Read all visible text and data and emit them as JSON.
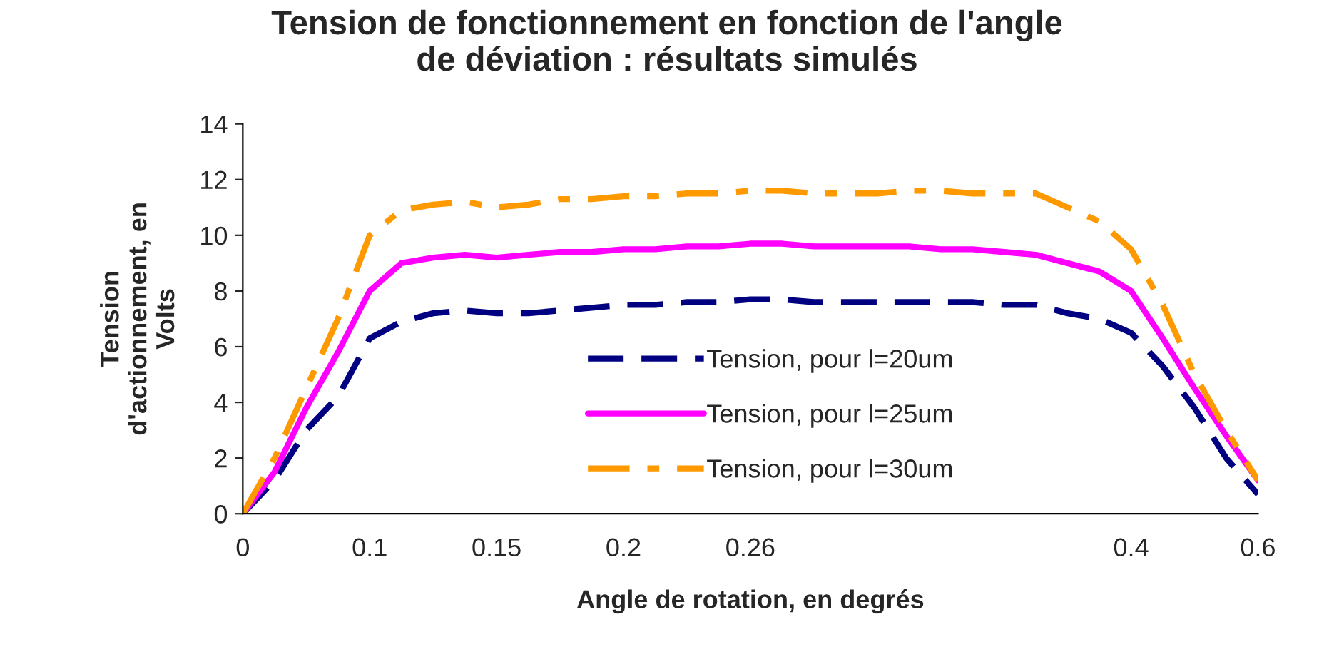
{
  "chart_data": {
    "type": "line",
    "title": "Tension de fonctionnement en fonction de l'angle\nde déviation : résultats simulés",
    "xlabel": "Angle de rotation, en degrés",
    "ylabel": "Tension\nd'actionnement, en\nVolts",
    "categories": [
      "0",
      null,
      null,
      null,
      "0.1",
      null,
      null,
      null,
      "0.15",
      null,
      null,
      null,
      "0.2",
      null,
      null,
      null,
      "0.26",
      null,
      null,
      null,
      null,
      null,
      null,
      null,
      null,
      null,
      null,
      null,
      "0.4",
      null,
      null,
      null,
      "0.6"
    ],
    "series": [
      {
        "name": "Tension, pour l=20um",
        "color": "#000080",
        "line_style": "dashed",
        "values": [
          0,
          1.2,
          3.0,
          4.2,
          6.3,
          6.9,
          7.2,
          7.3,
          7.2,
          7.2,
          7.3,
          7.4,
          7.5,
          7.5,
          7.6,
          7.6,
          7.7,
          7.7,
          7.6,
          7.6,
          7.6,
          7.6,
          7.6,
          7.6,
          7.5,
          7.5,
          7.2,
          7.0,
          6.5,
          5.3,
          3.8,
          2.0,
          0.7
        ]
      },
      {
        "name": "Tension, pour l=25um",
        "color": "#ff00ff",
        "line_style": "solid",
        "values": [
          0,
          1.5,
          3.8,
          5.8,
          8.0,
          9.0,
          9.2,
          9.3,
          9.2,
          9.3,
          9.4,
          9.4,
          9.5,
          9.5,
          9.6,
          9.6,
          9.7,
          9.7,
          9.6,
          9.6,
          9.6,
          9.6,
          9.5,
          9.5,
          9.4,
          9.3,
          9.0,
          8.7,
          8.0,
          6.3,
          4.5,
          2.8,
          1.2
        ]
      },
      {
        "name": "Tension, pour l=30um",
        "color": "#ff9900",
        "line_style": "dashdot",
        "values": [
          0,
          2.0,
          4.5,
          7.0,
          10.0,
          10.9,
          11.1,
          11.2,
          11.0,
          11.1,
          11.3,
          11.3,
          11.4,
          11.4,
          11.5,
          11.5,
          11.6,
          11.6,
          11.5,
          11.5,
          11.5,
          11.6,
          11.6,
          11.5,
          11.5,
          11.5,
          11.0,
          10.5,
          9.5,
          7.5,
          5.0,
          3.0,
          1.2
        ]
      }
    ],
    "ylim": [
      0,
      14
    ],
    "yticks": [
      0,
      2,
      4,
      6,
      8,
      10,
      12,
      14
    ],
    "grid": false,
    "legend": "bottom",
    "marker": "none"
  }
}
